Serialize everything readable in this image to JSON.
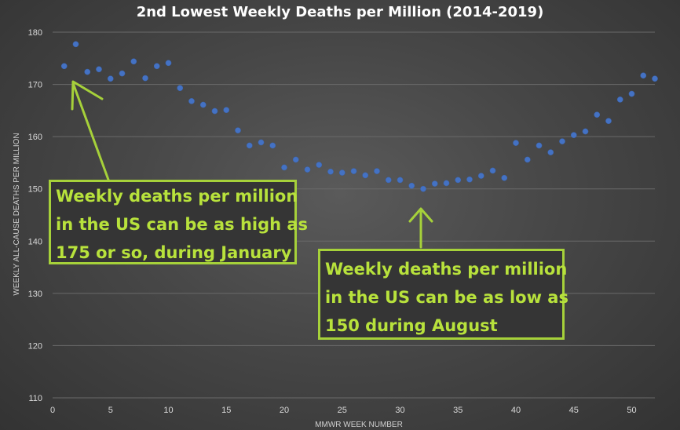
{
  "chart_data": {
    "type": "scatter",
    "title": "2nd Lowest Weekly Deaths per Million (2014-2019)",
    "xlabel": "MMWR WEEK NUMBER",
    "ylabel": "WEEKLY ALL-CAUSE DEATHS PER MILLION",
    "xlim": [
      0,
      52
    ],
    "ylim": [
      110,
      180
    ],
    "xticks": [
      0,
      5,
      10,
      15,
      20,
      25,
      30,
      35,
      40,
      45,
      50
    ],
    "yticks": [
      110,
      120,
      130,
      140,
      150,
      160,
      170,
      180
    ],
    "grid": "horizontal",
    "legend": "none",
    "series": [
      {
        "x": [
          1,
          2,
          3,
          4,
          5,
          6,
          7,
          8,
          9,
          10,
          11,
          12,
          13,
          14,
          15,
          16,
          17,
          18,
          19,
          20,
          21,
          22,
          23,
          24,
          25,
          26,
          27,
          28,
          29,
          30,
          31,
          32,
          33,
          34,
          35,
          36,
          37,
          38,
          39,
          40,
          41,
          42,
          43,
          44,
          45,
          46,
          47,
          48,
          49,
          50,
          51,
          52
        ],
        "y": [
          173.5,
          177.7,
          172.4,
          172.9,
          171.1,
          172.1,
          174.4,
          171.2,
          173.5,
          174.1,
          169.3,
          166.8,
          166.1,
          164.9,
          165.1,
          161.2,
          158.3,
          158.9,
          158.3,
          154.1,
          155.6,
          153.7,
          154.6,
          153.3,
          153.1,
          153.4,
          152.6,
          153.4,
          151.7,
          151.7,
          150.6,
          150.0,
          151.0,
          151.1,
          151.7,
          151.8,
          152.5,
          153.5,
          152.1,
          158.8,
          155.6,
          158.3,
          157.0,
          159.1,
          160.3,
          161.0,
          164.2,
          163.0,
          167.1,
          168.2,
          171.7,
          171.1
        ]
      }
    ],
    "colors": {
      "marker": "#4472c4",
      "annotation": "#a6d13a"
    }
  },
  "annotations": {
    "high": {
      "lines": [
        "Weekly deaths per million",
        "in the US can be as high as",
        "175 or so, during January"
      ]
    },
    "low": {
      "lines": [
        "Weekly deaths per million",
        "in the US can be as low as",
        "150 during August"
      ]
    }
  }
}
